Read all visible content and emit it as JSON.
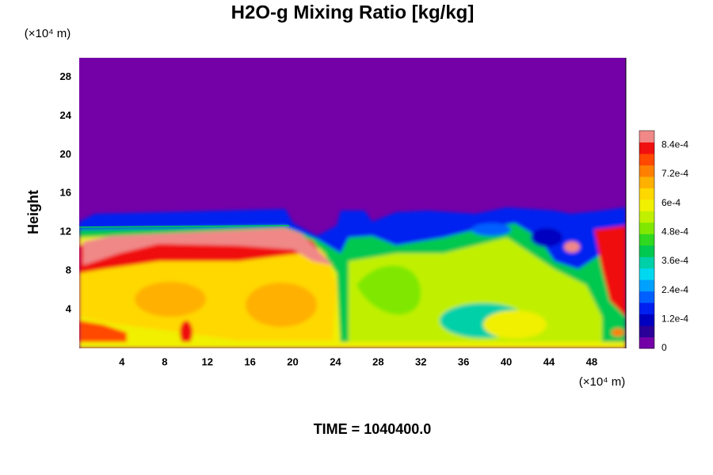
{
  "chart_data": {
    "type": "contour",
    "title": "H2O-g Mixing Ratio [kg/kg]",
    "ylabel": "Height",
    "y_unit": "(×10⁴ m)",
    "x_unit": "(×10⁴ m)",
    "footer": "TIME = 1040400.0",
    "xlim": [
      0,
      51.2
    ],
    "xticks": [
      4,
      8,
      12,
      16,
      20,
      24,
      28,
      32,
      36,
      40,
      44,
      48
    ],
    "ylim": [
      0,
      30
    ],
    "yticks": [
      4,
      8,
      12,
      16,
      20,
      24,
      28
    ],
    "colorbar": {
      "lim": [
        0,
        0.0009
      ],
      "ticks": [
        0,
        {
          "value": 0.00012,
          "label": "1.2e-4"
        },
        {
          "value": 0.00024,
          "label": "2.4e-4"
        },
        {
          "value": 0.00036,
          "label": "3.6e-4"
        },
        {
          "value": 0.00048,
          "label": "4.8e-4"
        },
        {
          "value": 0.0006,
          "label": "6e-4"
        },
        {
          "value": 0.00072,
          "label": "7.2e-4"
        },
        {
          "value": 0.00084,
          "label": "8.4e-4"
        }
      ],
      "colors": [
        "#7400a8",
        "#2a0098",
        "#0000c0",
        "#0020f0",
        "#0060ff",
        "#00a0ff",
        "#00d8f0",
        "#00d0a8",
        "#00c850",
        "#30d820",
        "#80e800",
        "#c0f000",
        "#f0f000",
        "#ffd800",
        "#ffb000",
        "#ff8000",
        "#ff4800",
        "#f01010",
        "#f08888"
      ]
    }
  }
}
